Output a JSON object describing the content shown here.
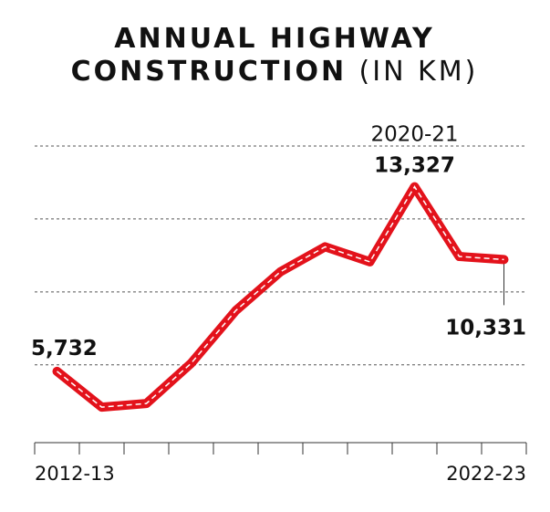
{
  "chart_data": {
    "type": "line",
    "title_lines": [
      "ANNUAL HIGHWAY",
      "CONSTRUCTION"
    ],
    "unit": "(IN KM)",
    "categories": [
      "2012-13",
      null,
      null,
      null,
      null,
      null,
      null,
      null,
      null,
      null,
      "2022-23"
    ],
    "series": [
      {
        "name": "Highway construction",
        "color": "#e3121b",
        "values": [
          5732,
          4260,
          4410,
          6061,
          8231,
          9829,
          10855,
          10237,
          13327,
          10457,
          10331
        ],
        "value_labels": [
          "5,732",
          null,
          null,
          null,
          null,
          null,
          null,
          null,
          "13,327",
          null,
          "10,331"
        ]
      }
    ],
    "annotation": {
      "index": 8,
      "label": "2020-21"
    },
    "ylim": [
      2800,
      15800
    ],
    "yticks": [
      6000,
      9000,
      12000,
      15000
    ],
    "grid": true
  }
}
